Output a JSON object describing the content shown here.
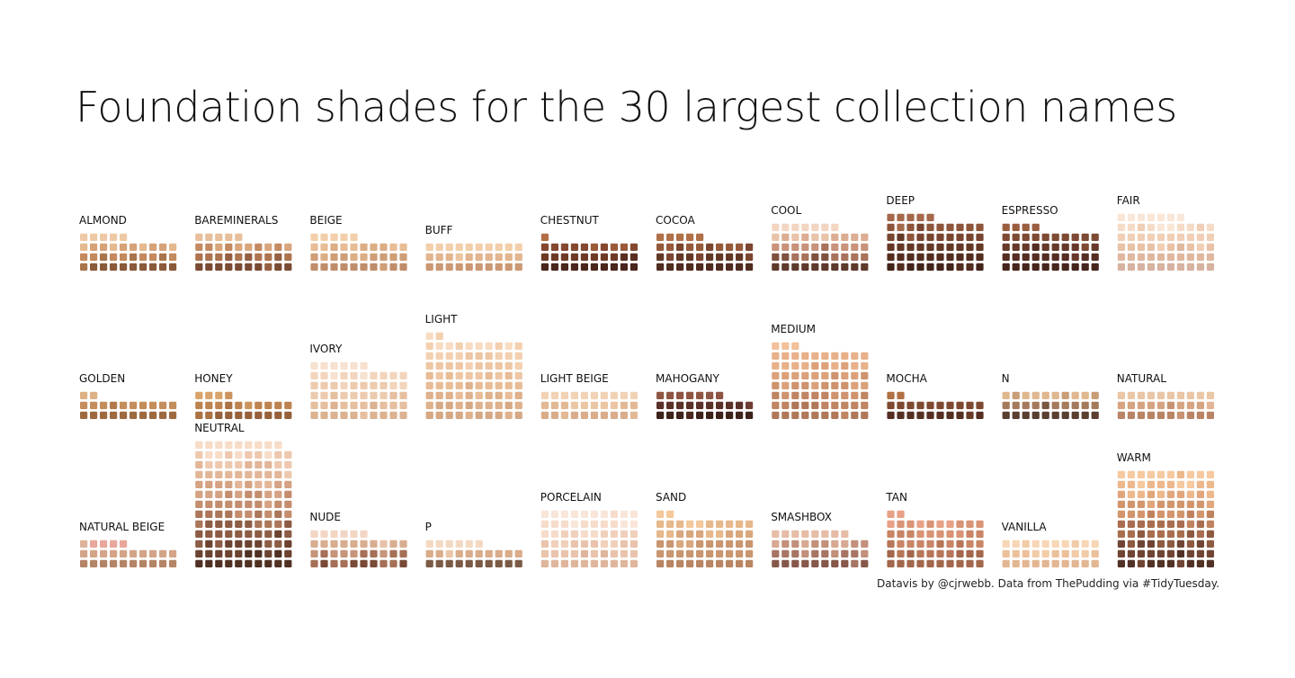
{
  "title": "Foundation shades for the 30 largest collection names",
  "caption": "Datavis by @cjrwebb. Data from ThePudding via #TidyTuesday.",
  "chart_data": {
    "type": "waffle",
    "cells_per_row": 10,
    "panels": [
      {
        "name": "ALMOND",
        "count": 35,
        "palette": [
          "#efc9a6",
          "#e5b98f",
          "#d6a278",
          "#c4895d",
          "#a9744b",
          "#8a5a3b"
        ]
      },
      {
        "name": "BAREMINERALS",
        "count": 35,
        "palette": [
          "#e8bf9a",
          "#d9a57c",
          "#c48b63",
          "#ad744f",
          "#956041",
          "#7a4b33"
        ]
      },
      {
        "name": "BEIGE",
        "count": 35,
        "palette": [
          "#f2cfaa",
          "#e7bd95",
          "#dcae85",
          "#cf9e77",
          "#c08d6a"
        ]
      },
      {
        "name": "BUFF",
        "count": 30,
        "palette": [
          "#f2cfaa",
          "#ecc49f",
          "#e2b58e",
          "#d7a67f",
          "#cb9873"
        ]
      },
      {
        "name": "CHESTNUT",
        "count": 31,
        "palette": [
          "#b26f45",
          "#9a5a3a",
          "#85482f",
          "#6e3a26",
          "#5a2e20",
          "#4a261c"
        ]
      },
      {
        "name": "COCOA",
        "count": 35,
        "palette": [
          "#b07048",
          "#965a3a",
          "#7c4630",
          "#643827",
          "#502c20"
        ]
      },
      {
        "name": "COOL",
        "count": 47,
        "palette": [
          "#f3d6c2",
          "#e9c3aa",
          "#dcad92",
          "#c9927a",
          "#a9725c",
          "#80513f",
          "#5e3a2c"
        ]
      },
      {
        "name": "DEEP",
        "count": 55,
        "palette": [
          "#a5684a",
          "#8e553b",
          "#794530",
          "#653826",
          "#532d1f",
          "#43241a"
        ]
      },
      {
        "name": "ESPRESSO",
        "count": 44,
        "palette": [
          "#9a5e3f",
          "#7e4a33",
          "#68392a",
          "#552d22",
          "#46251c"
        ]
      },
      {
        "name": "FAIR",
        "count": 57,
        "palette": [
          "#fae6d6",
          "#f6dcc7",
          "#f0cfb6",
          "#e9c2a6",
          "#e0b89f",
          "#d8b2a0"
        ]
      },
      {
        "name": "GOLDEN",
        "count": 22,
        "palette": [
          "#ddb184",
          "#d3a070",
          "#c48d5c",
          "#b27a4c",
          "#9d693f"
        ]
      },
      {
        "name": "HONEY",
        "count": 24,
        "palette": [
          "#d9a46c",
          "#cc935c",
          "#bd834f",
          "#ab7244",
          "#96603a"
        ]
      },
      {
        "name": "IVORY",
        "count": 56,
        "palette": [
          "#f7e1cf",
          "#f2d5bc",
          "#edcbae",
          "#e6bf9f",
          "#dcb290"
        ]
      },
      {
        "name": "LIGHT",
        "count": 82,
        "palette": [
          "#f8dcc2",
          "#f3d0b0",
          "#eec6a3",
          "#e8bc96",
          "#dfb18c",
          "#d6a884"
        ]
      },
      {
        "name": "LIGHT BEIGE",
        "count": 30,
        "palette": [
          "#f2d2b4",
          "#ecc6a3",
          "#e3b995",
          "#d9ad8a"
        ]
      },
      {
        "name": "MAHOGANY",
        "count": 27,
        "palette": [
          "#8e5542",
          "#6f3d31",
          "#5a3028",
          "#4a2820",
          "#3d211b"
        ]
      },
      {
        "name": "MEDIUM",
        "count": 73,
        "palette": [
          "#f2c09a",
          "#e8b18a",
          "#dca17a",
          "#cf936d",
          "#c08563",
          "#b07859"
        ]
      },
      {
        "name": "MOCHA",
        "count": 22,
        "palette": [
          "#b17143",
          "#975c39",
          "#7e4930",
          "#683a28",
          "#552e22"
        ]
      },
      {
        "name": "N",
        "count": 30,
        "palette": [
          "#e0b890",
          "#c99d77",
          "#a57a5b",
          "#7a5742",
          "#5a3e30"
        ]
      },
      {
        "name": "NATURAL",
        "count": 30,
        "palette": [
          "#ebc6a6",
          "#e2b594",
          "#d6a482",
          "#c89373",
          "#b98466"
        ]
      },
      {
        "name": "NATURAL BEIGE",
        "count": 25,
        "palette": [
          "#e8a79a",
          "#dcb49a",
          "#d3a487",
          "#c59476",
          "#b48466"
        ]
      },
      {
        "name": "NEUTRAL",
        "count": 129,
        "palette": [
          "#f7dcc8",
          "#eec8ae",
          "#e3b698",
          "#d5a283",
          "#c48d6d",
          "#ab7659",
          "#8c5c44",
          "#6b4330",
          "#4f3023"
        ]
      },
      {
        "name": "NUDE",
        "count": 36,
        "palette": [
          "#f2d6c4",
          "#e7c2a8",
          "#d9ad90",
          "#c6957a",
          "#a57056",
          "#7a4a37"
        ]
      },
      {
        "name": "P",
        "count": 26,
        "palette": [
          "#f4d9c2",
          "#ebc6a8",
          "#d9ac8a",
          "#b78a6a",
          "#7b5a45"
        ]
      },
      {
        "name": "PORCELAIN",
        "count": 60,
        "palette": [
          "#f9e6d9",
          "#f6dccb",
          "#f1d0bb",
          "#e9c3ab",
          "#dfb59c"
        ]
      },
      {
        "name": "SAND",
        "count": 52,
        "palette": [
          "#f3c89a",
          "#e7b88b",
          "#d9a77d",
          "#c99670",
          "#b98562"
        ]
      },
      {
        "name": "SMASHBOX",
        "count": 38,
        "palette": [
          "#e7bca6",
          "#d8a892",
          "#c2907b",
          "#a67563",
          "#87584a"
        ]
      },
      {
        "name": "TAN",
        "count": 52,
        "palette": [
          "#e8a186",
          "#d99475",
          "#c98566",
          "#b87659",
          "#a3674c"
        ]
      },
      {
        "name": "VANILLA",
        "count": 30,
        "palette": [
          "#f7d6b6",
          "#f2cba7",
          "#ebc09b",
          "#e3b692"
        ]
      },
      {
        "name": "WARM",
        "count": 100,
        "palette": [
          "#f6c9a0",
          "#edb88c",
          "#e1a67b",
          "#d3956c",
          "#c0825d",
          "#a96e4f",
          "#8e5a40",
          "#704533",
          "#523226"
        ]
      }
    ]
  }
}
